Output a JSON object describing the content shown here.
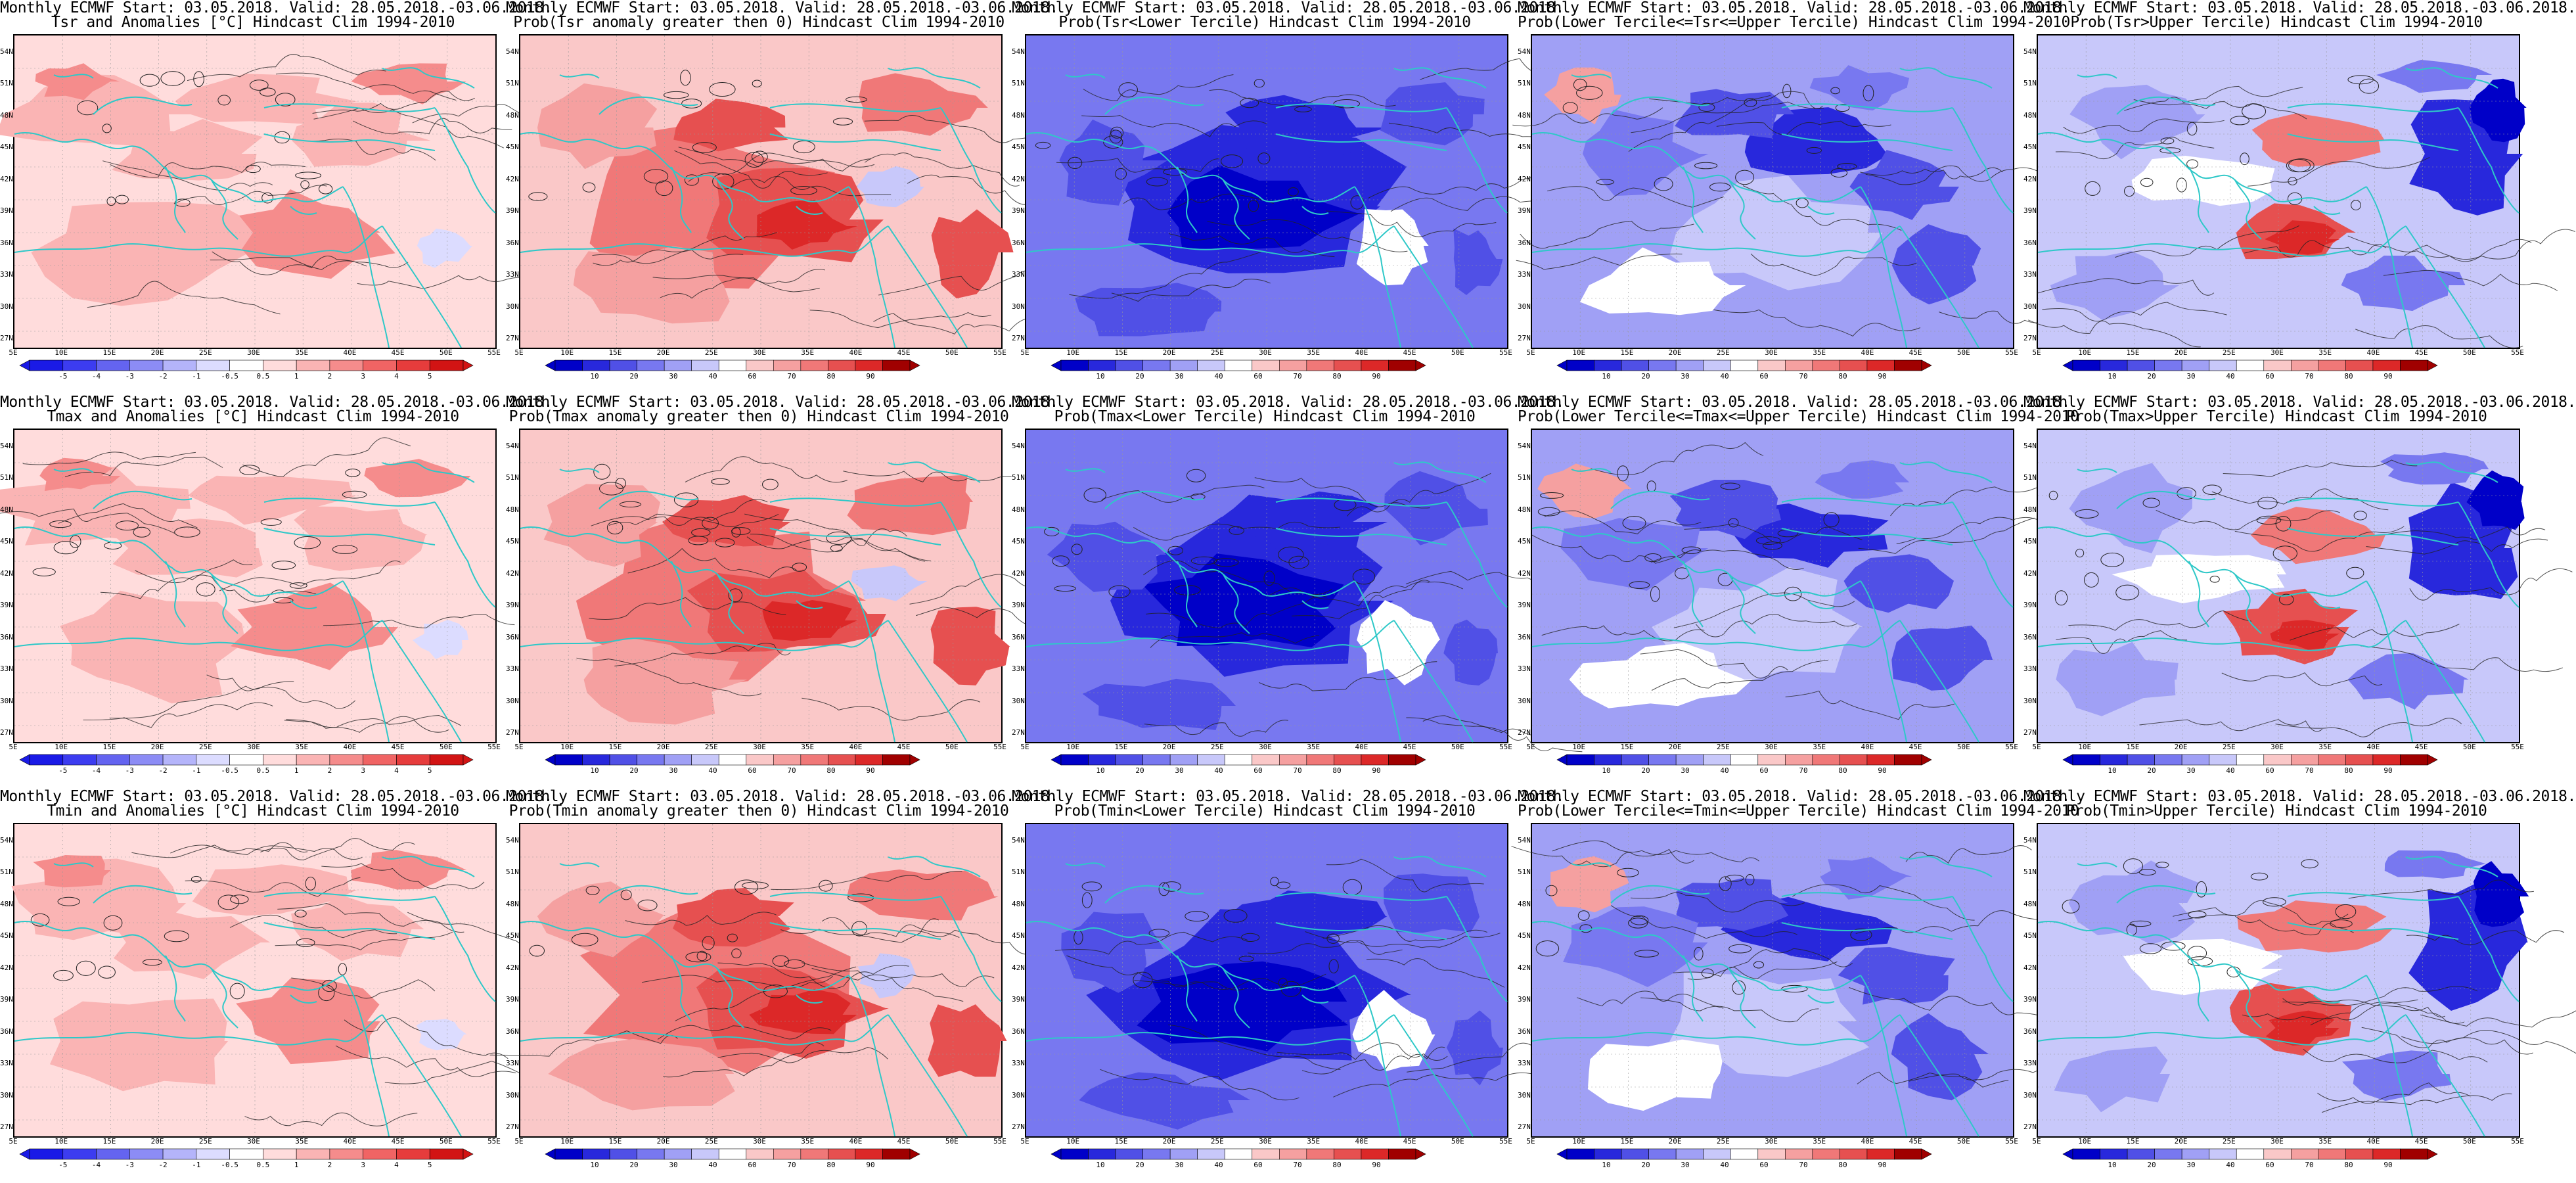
{
  "lat_labels": [
    "54N",
    "51N",
    "48N",
    "45N",
    "42N",
    "39N",
    "36N",
    "33N",
    "30N",
    "27N"
  ],
  "lon_labels": [
    "5E",
    "10E",
    "15E",
    "20E",
    "25E",
    "30E",
    "35E",
    "40E",
    "45E",
    "50E",
    "55E"
  ],
  "colors": {
    "coast": "#2ec8c8",
    "contour": "#222222",
    "anom_scale": [
      "#1a1ae6",
      "#3c3cf0",
      "#6464f0",
      "#8c8cf5",
      "#b4b4fa",
      "#dcdcff",
      "#ffffff",
      "#ffdcdc",
      "#fab4b4",
      "#f58c8c",
      "#f06464",
      "#e63c3c",
      "#d21414"
    ],
    "prob_scale": [
      "#0000c8",
      "#2828dc",
      "#5050e6",
      "#7878f0",
      "#a0a0f5",
      "#c8c8fa",
      "#ffffff",
      "#fac8c8",
      "#f5a0a0",
      "#f07878",
      "#e65050",
      "#dc2828",
      "#a00000"
    ]
  },
  "colorbars": {
    "anomaly": [
      "-5",
      "-4",
      "-3",
      "-2",
      "-1",
      "-0.5",
      "0.5",
      "1",
      "2",
      "3",
      "4",
      "5"
    ],
    "probability": [
      "10",
      "20",
      "30",
      "40",
      "60",
      "70",
      "80",
      "90"
    ]
  },
  "panels": [
    {
      "id": "p00",
      "type": "anom",
      "tone": "warm_light",
      "line1": "Monthly ECMWF Start: 03.05.2018. Valid: 28.05.2018.-03.06.2018.",
      "line2": "Tsr and Anomalies [°C] Hindcast Clim 1994-2010"
    },
    {
      "id": "p01",
      "type": "prob",
      "tone": "warm_strong",
      "line1": "Monthly ECMWF Start: 03.05.2018. Valid: 28.05.2018.-03.06.2018.",
      "line2": "Prob(Tsr anomaly greater then 0) Hindcast Clim 1994-2010"
    },
    {
      "id": "p02",
      "type": "prob",
      "tone": "cold_strong",
      "line1": "Monthly ECMWF Start: 03.05.2018. Valid: 28.05.2018.-03.06.2018.",
      "line2": "Prob(Tsr<Lower Tercile) Hindcast Clim 1994-2010"
    },
    {
      "id": "p03",
      "type": "prob",
      "tone": "cold_mixed",
      "line1": "Monthly ECMWF Start: 03.05.2018. Valid: 28.05.2018.-03.06.2018.",
      "line2": "Prob(Lower Tercile<=Tsr<=Upper Tercile) Hindcast Clim 1994-2010"
    },
    {
      "id": "p04",
      "type": "prob",
      "tone": "mixed",
      "line1": "Monthly ECMWF Start: 03.05.2018. Valid: 28.05.2018.-03.06.2018.",
      "line2": "Prob(Tsr>Upper Tercile) Hindcast Clim 1994-2010"
    },
    {
      "id": "p10",
      "type": "anom",
      "tone": "warm_light",
      "line1": "Monthly ECMWF Start: 03.05.2018. Valid: 28.05.2018.-03.06.2018.",
      "line2": "Tmax and Anomalies [°C] Hindcast Clim 1994-2010"
    },
    {
      "id": "p11",
      "type": "prob",
      "tone": "warm_strong",
      "line1": "Monthly ECMWF Start: 03.05.2018. Valid: 28.05.2018.-03.06.2018.",
      "line2": "Prob(Tmax anomaly greater then 0) Hindcast Clim 1994-2010"
    },
    {
      "id": "p12",
      "type": "prob",
      "tone": "cold_strong",
      "line1": "Monthly ECMWF Start: 03.05.2018. Valid: 28.05.2018.-03.06.2018.",
      "line2": "Prob(Tmax<Lower Tercile) Hindcast Clim 1994-2010"
    },
    {
      "id": "p13",
      "type": "prob",
      "tone": "cold_mixed",
      "line1": "Monthly ECMWF Start: 03.05.2018. Valid: 28.05.2018.-03.06.2018.",
      "line2": "Prob(Lower Tercile<=Tmax<=Upper Tercile) Hindcast Clim 1994-2010"
    },
    {
      "id": "p14",
      "type": "prob",
      "tone": "mixed",
      "line1": "Monthly ECMWF Start: 03.05.2018. Valid: 28.05.2018.-03.06.2018.",
      "line2": "Prob(Tmax>Upper Tercile) Hindcast Clim 1994-2010"
    },
    {
      "id": "p20",
      "type": "anom",
      "tone": "warm_light",
      "line1": "Monthly ECMWF Start: 03.05.2018. Valid: 28.05.2018.-03.06.2018.",
      "line2": "Tmin and Anomalies [°C] Hindcast Clim 1994-2010"
    },
    {
      "id": "p21",
      "type": "prob",
      "tone": "warm_strong",
      "line1": "Monthly ECMWF Start: 03.05.2018. Valid: 28.05.2018.-03.06.2018.",
      "line2": "Prob(Tmin anomaly greater then 0) Hindcast Clim 1994-2010"
    },
    {
      "id": "p22",
      "type": "prob",
      "tone": "cold_strong",
      "line1": "Monthly ECMWF Start: 03.05.2018. Valid: 28.05.2018.-03.06.2018.",
      "line2": "Prob(Tmin<Lower Tercile) Hindcast Clim 1994-2010"
    },
    {
      "id": "p23",
      "type": "prob",
      "tone": "cold_mixed",
      "line1": "Monthly ECMWF Start: 03.05.2018. Valid: 28.05.2018.-03.06.2018.",
      "line2": "Prob(Lower Tercile<=Tmin<=Upper Tercile) Hindcast Clim 1994-2010"
    },
    {
      "id": "p24",
      "type": "prob",
      "tone": "mixed",
      "line1": "Monthly ECMWF Start: 03.05.2018. Valid: 28.05.2018.-03.06.2018.",
      "line2": "Prob(Tmin>Upper Tercile) Hindcast Clim 1994-2010"
    }
  ]
}
